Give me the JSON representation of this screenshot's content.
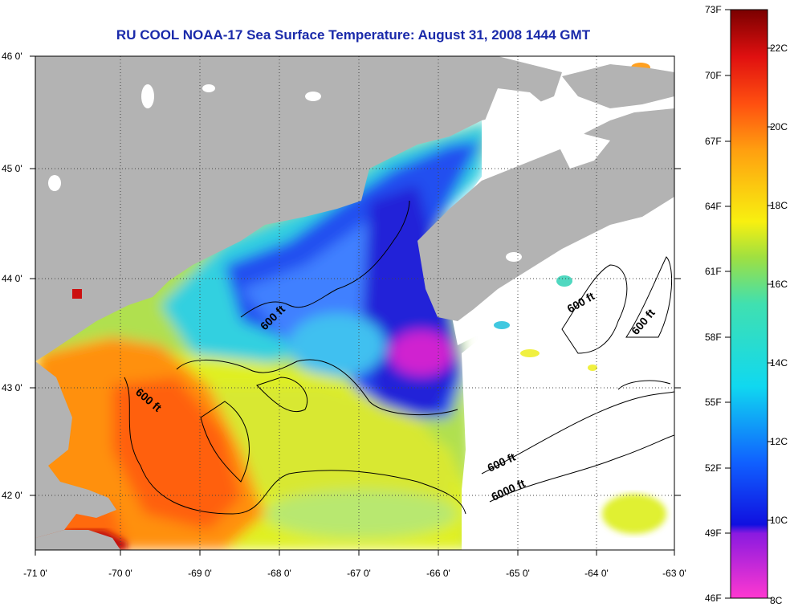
{
  "title": "RU COOL  NOAA-17  Sea Surface Temperature:  August 31, 2008 1444 GMT",
  "latitude_labels": [
    "46 0'",
    "45 0'",
    "44 0'",
    "43 0'",
    "42 0'"
  ],
  "longitude_labels": [
    "-71 0'",
    "-70 0'",
    "-69 0'",
    "-68 0'",
    "-67 0'",
    "-66 0'",
    "-65 0'",
    "-64 0'",
    "-63 0'"
  ],
  "contour_labels": [
    "600 ft",
    "600 ft",
    "600 ft",
    "600 ft",
    "600 ft",
    "6000 ft"
  ],
  "colorbar": {
    "fahrenheit": [
      "73F",
      "70F",
      "67F",
      "64F",
      "61F",
      "58F",
      "55F",
      "52F",
      "49F",
      "46F"
    ],
    "celsius": [
      "22C",
      "20C",
      "18C",
      "16C",
      "14C",
      "12C",
      "10C",
      "8C"
    ]
  },
  "colors": {
    "land": "#b3b3b3",
    "title": "#1a2aaa",
    "no_data": "#ffffff"
  }
}
